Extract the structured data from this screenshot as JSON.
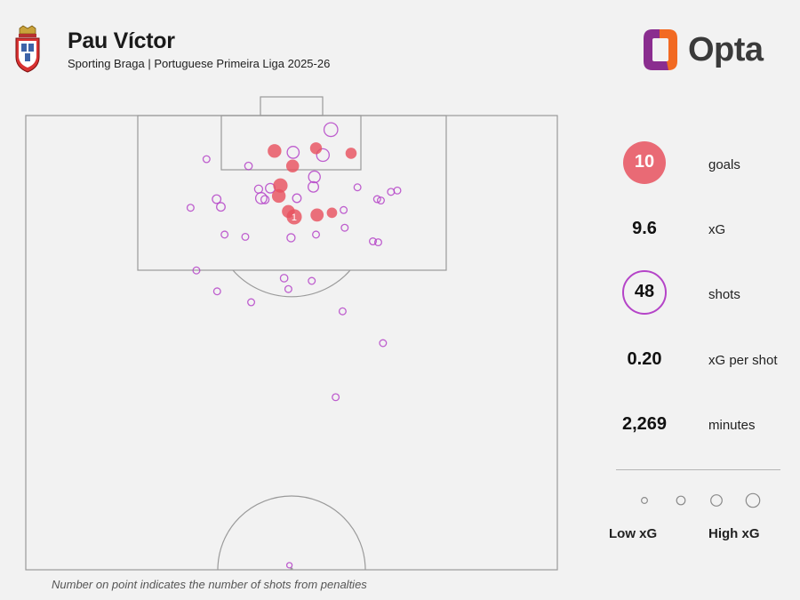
{
  "header": {
    "player": "Pau Víctor",
    "subtitle": "Sporting Braga | Portuguese Primeira Liga 2025-26",
    "logo_text": "Opta"
  },
  "stats": {
    "goals_value": "10",
    "goals_label": "goals",
    "xg_value": "9.6",
    "xg_label": "xG",
    "shots_value": "48",
    "shots_label": "shots",
    "xg_per_shot_value": "0.20",
    "xg_per_shot_label": "xG per shot",
    "minutes_value": "2,269",
    "minutes_label": "minutes"
  },
  "legend": {
    "low": "Low xG",
    "high": "High xG"
  },
  "footnote": "Number on point indicates the number of shots from penalties",
  "colors": {
    "goal": "#e8525f",
    "shot": "#b544c8",
    "pitch_line": "#9a9a9a",
    "opta_orange": "#f26a22",
    "opta_purple": "#8a2d8f"
  },
  "chart_data": {
    "type": "scatter",
    "x_range": [
      0,
      100
    ],
    "y_range": [
      0,
      100
    ],
    "goals": [
      {
        "x": 54.6,
        "y": 92.8,
        "xg": 0.3
      },
      {
        "x": 61.2,
        "y": 91.7,
        "xg": 0.25
      },
      {
        "x": 46.8,
        "y": 92.2,
        "xg": 0.45
      },
      {
        "x": 50.2,
        "y": 88.9,
        "xg": 0.38
      },
      {
        "x": 47.9,
        "y": 84.6,
        "xg": 0.52
      },
      {
        "x": 47.6,
        "y": 82.3,
        "xg": 0.45
      },
      {
        "x": 49.4,
        "y": 78.9,
        "xg": 0.38
      },
      {
        "x": 50.5,
        "y": 77.7,
        "xg": 0.6,
        "label": "1"
      },
      {
        "x": 54.8,
        "y": 78.1,
        "xg": 0.4
      },
      {
        "x": 57.6,
        "y": 78.6,
        "xg": 0.2
      }
    ],
    "shots": [
      {
        "x": 57.4,
        "y": 96.9,
        "xg": 0.45
      },
      {
        "x": 50.3,
        "y": 91.9,
        "xg": 0.3
      },
      {
        "x": 55.9,
        "y": 91.3,
        "xg": 0.35
      },
      {
        "x": 34.0,
        "y": 90.4,
        "xg": 0.04
      },
      {
        "x": 41.9,
        "y": 88.9,
        "xg": 0.06
      },
      {
        "x": 54.3,
        "y": 86.5,
        "xg": 0.28
      },
      {
        "x": 54.1,
        "y": 84.3,
        "xg": 0.2
      },
      {
        "x": 62.4,
        "y": 84.2,
        "xg": 0.04
      },
      {
        "x": 46.0,
        "y": 84.0,
        "xg": 0.15
      },
      {
        "x": 43.8,
        "y": 83.8,
        "xg": 0.08
      },
      {
        "x": 68.7,
        "y": 83.2,
        "xg": 0.04
      },
      {
        "x": 69.9,
        "y": 83.5,
        "xg": 0.04
      },
      {
        "x": 44.3,
        "y": 81.8,
        "xg": 0.25
      },
      {
        "x": 35.9,
        "y": 81.6,
        "xg": 0.1
      },
      {
        "x": 45.0,
        "y": 81.5,
        "xg": 0.08
      },
      {
        "x": 51.0,
        "y": 81.8,
        "xg": 0.1
      },
      {
        "x": 66.1,
        "y": 81.6,
        "xg": 0.04
      },
      {
        "x": 66.8,
        "y": 81.3,
        "xg": 0.04
      },
      {
        "x": 31.0,
        "y": 79.7,
        "xg": 0.04
      },
      {
        "x": 36.7,
        "y": 79.9,
        "xg": 0.1
      },
      {
        "x": 59.8,
        "y": 79.2,
        "xg": 0.04
      },
      {
        "x": 60.0,
        "y": 75.3,
        "xg": 0.04
      },
      {
        "x": 37.4,
        "y": 73.8,
        "xg": 0.04
      },
      {
        "x": 41.3,
        "y": 73.3,
        "xg": 0.04
      },
      {
        "x": 49.9,
        "y": 73.1,
        "xg": 0.08
      },
      {
        "x": 54.6,
        "y": 73.8,
        "xg": 0.04
      },
      {
        "x": 65.3,
        "y": 72.3,
        "xg": 0.04
      },
      {
        "x": 66.3,
        "y": 72.1,
        "xg": 0.04
      },
      {
        "x": 32.1,
        "y": 65.9,
        "xg": 0.04
      },
      {
        "x": 48.6,
        "y": 64.2,
        "xg": 0.06
      },
      {
        "x": 53.8,
        "y": 63.6,
        "xg": 0.04
      },
      {
        "x": 49.4,
        "y": 61.8,
        "xg": 0.04
      },
      {
        "x": 36.0,
        "y": 61.3,
        "xg": 0.04
      },
      {
        "x": 42.4,
        "y": 58.9,
        "xg": 0.04
      },
      {
        "x": 59.6,
        "y": 56.9,
        "xg": 0.04
      },
      {
        "x": 67.2,
        "y": 49.9,
        "xg": 0.04
      },
      {
        "x": 58.3,
        "y": 38.0,
        "xg": 0.04
      },
      {
        "x": 49.6,
        "y": 1.0,
        "xg": 0.01
      }
    ],
    "legend_sizes": [
      0.02,
      0.1,
      0.25,
      0.45
    ]
  }
}
